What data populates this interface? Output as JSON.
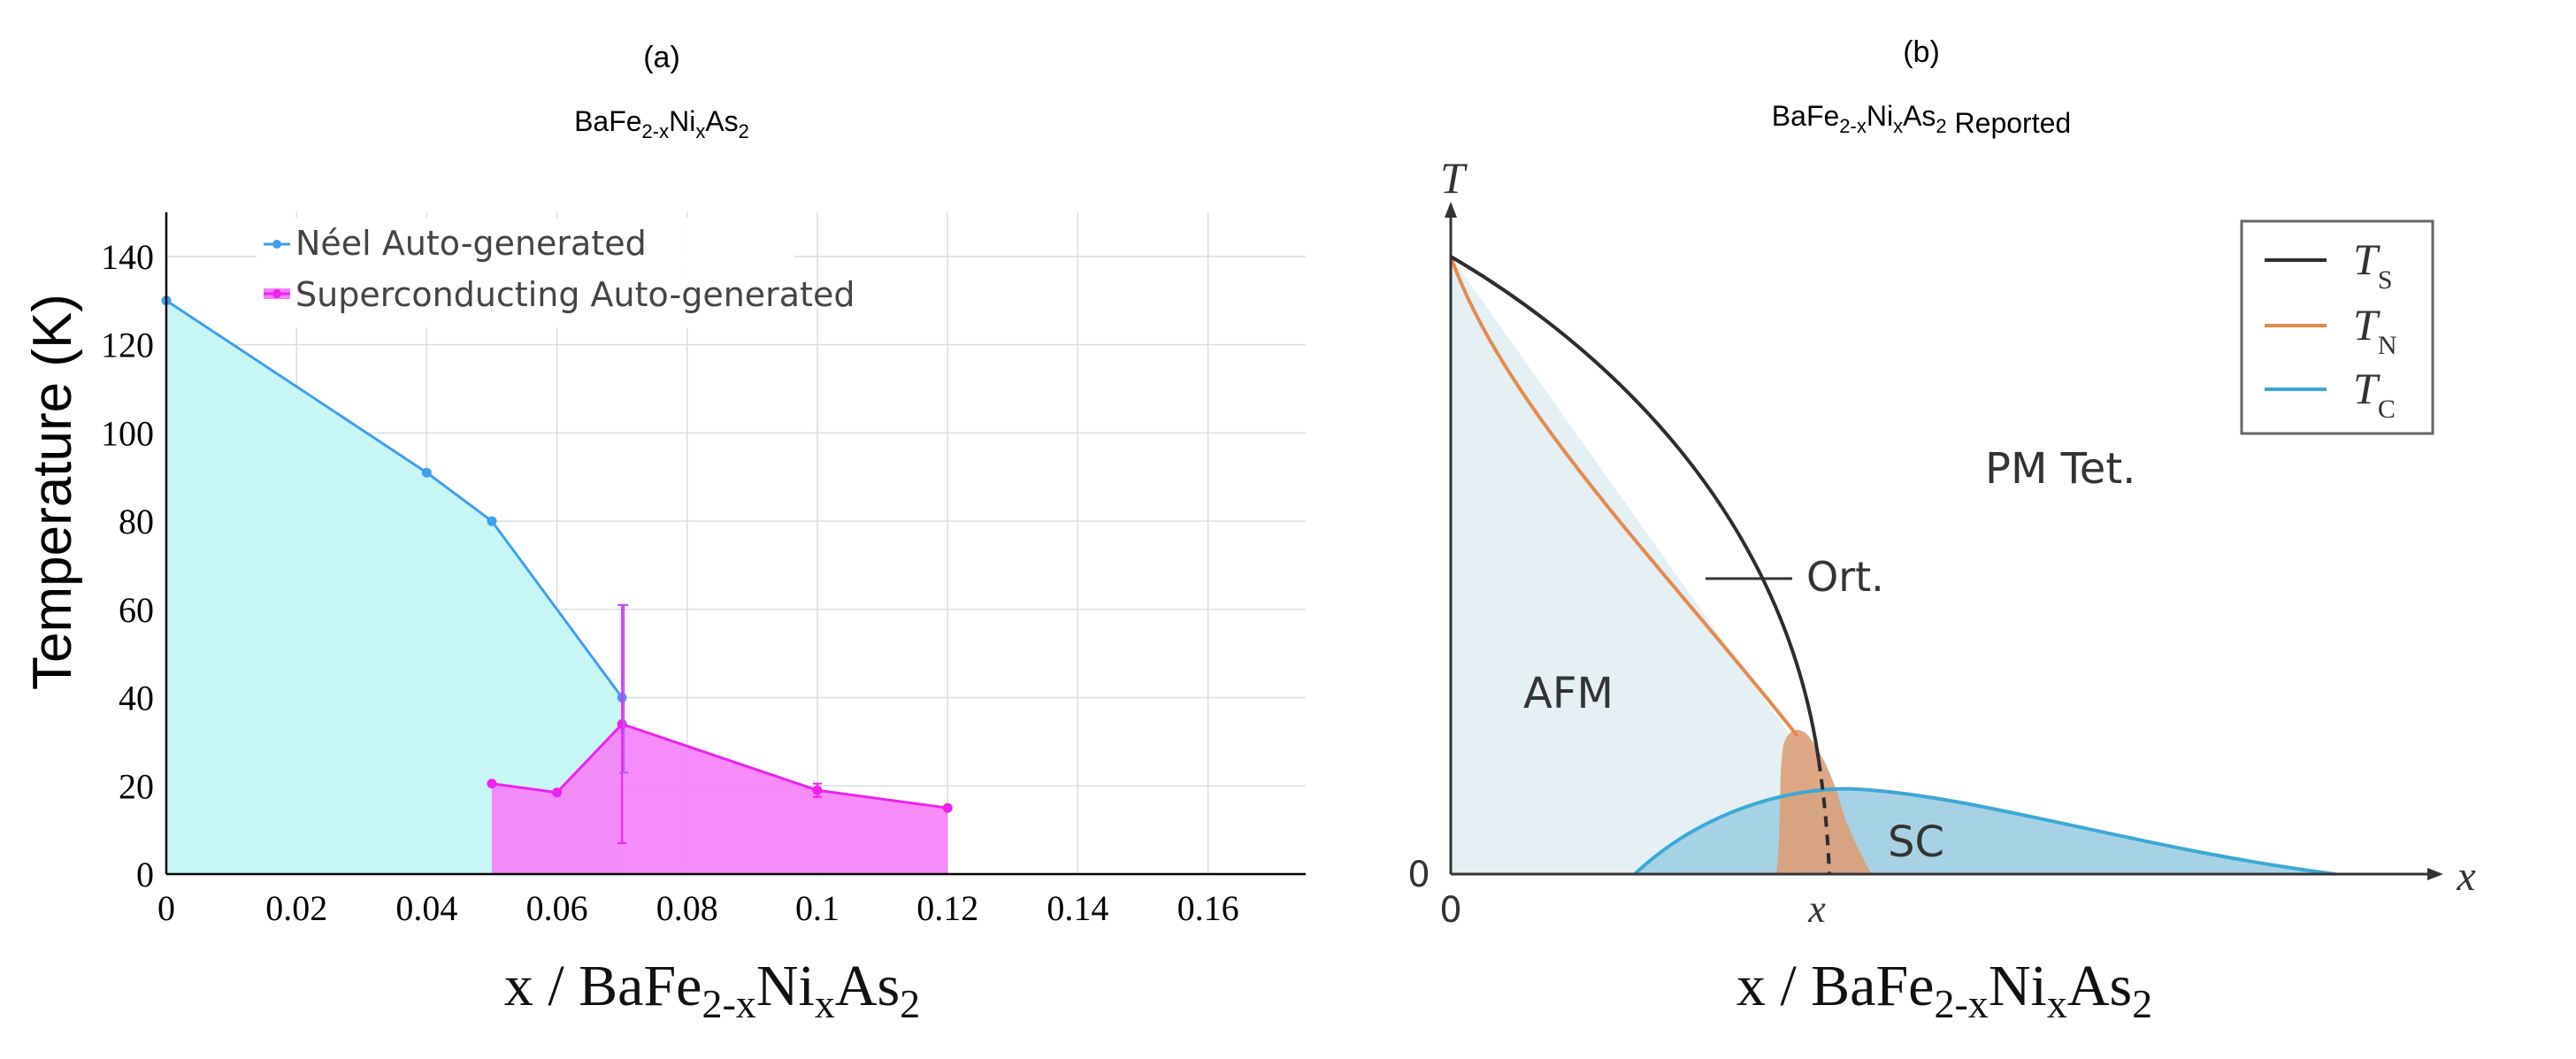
{
  "chart_data": [
    {
      "panel": "(a)",
      "type": "line",
      "title": "BaFe2-xNixAs2",
      "title_parts": {
        "base": "BaFe",
        "sub1": "2-x",
        "mid": "Ni",
        "sub2": "x",
        "end": "As",
        "sub3": "2"
      },
      "xlabel": "x / BaFe2-xNixAs2",
      "xlabel_parts": {
        "base": "x / BaFe",
        "sub1": "2-x",
        "mid": "Ni",
        "sub2": "x",
        "end": "As",
        "sub3": "2"
      },
      "ylabel": "Temperature (K)",
      "xlim": [
        0,
        0.175
      ],
      "ylim": [
        0,
        150
      ],
      "xticks": [
        0,
        0.02,
        0.04,
        0.06,
        0.08,
        0.1,
        0.12,
        0.14,
        0.16
      ],
      "xtick_labels": [
        "0",
        "0.02",
        "0.04",
        "0.06",
        "0.08",
        "0.1",
        "0.12",
        "0.14",
        "0.16"
      ],
      "yticks": [
        0,
        20,
        40,
        60,
        80,
        100,
        120,
        140
      ],
      "ytick_labels": [
        "0",
        "20",
        "40",
        "60",
        "80",
        "100",
        "120",
        "140"
      ],
      "grid": true,
      "legend": "top-left",
      "series": [
        {
          "name": "Néel Auto-generated",
          "color": "#3aa0f0",
          "fill": "#c8f6f6",
          "x": [
            0,
            0.04,
            0.05,
            0.07
          ],
          "y": [
            130,
            91,
            80,
            40
          ]
        },
        {
          "name": "Superconducting Auto-generated",
          "color": "#ee22ee",
          "fill": "#f47ff8",
          "x": [
            0.05,
            0.06,
            0.07,
            0.1,
            0.12
          ],
          "y": [
            20.5,
            18.5,
            34,
            19,
            15
          ],
          "yerr_low": [
            0,
            0,
            27,
            1.5,
            0
          ],
          "yerr_high": [
            0,
            0,
            27,
            1.5,
            0
          ]
        }
      ],
      "extra_errorbars": [
        {
          "x": 0.07,
          "y": 40,
          "low": 23,
          "high": 61,
          "series": "Néel Auto-generated"
        }
      ]
    },
    {
      "panel": "(b)",
      "type": "area",
      "title": "BaFe2-xNixAs2 Reported",
      "title_parts": {
        "base": "BaFe",
        "sub1": "2-x",
        "mid": "Ni",
        "sub2": "x",
        "end": "As",
        "sub3": "2",
        "suffix": " Reported"
      },
      "xlabel": "x / BaFe2-xNixAs2",
      "xlabel_parts": {
        "base": "x / BaFe",
        "sub1": "2-x",
        "mid": "Ni",
        "sub2": "x",
        "end": "As",
        "sub3": "2"
      },
      "axis_labels": {
        "y_axis": "T",
        "x_axis": "x",
        "origin_y": "0",
        "origin_x": "0",
        "x_mark": "x"
      },
      "legend": "top-right",
      "legend_entries": [
        {
          "symbol": "T",
          "sub": "S",
          "color": "#2d2d2d"
        },
        {
          "symbol": "T",
          "sub": "N",
          "color": "#e48a4c"
        },
        {
          "symbol": "T",
          "sub": "C",
          "color": "#3ba8d8"
        }
      ],
      "region_labels": {
        "afm": "AFM",
        "ort": "Ort.",
        "pm": "PM Tet.",
        "sc": "SC"
      },
      "colors": {
        "afm": "#e4f0f4",
        "sc": "#a7d2e6",
        "ort": "#dc9e78",
        "ts": "#2d2d2d",
        "tn": "#e48a4c",
        "tc": "#3ba8d8"
      }
    }
  ]
}
